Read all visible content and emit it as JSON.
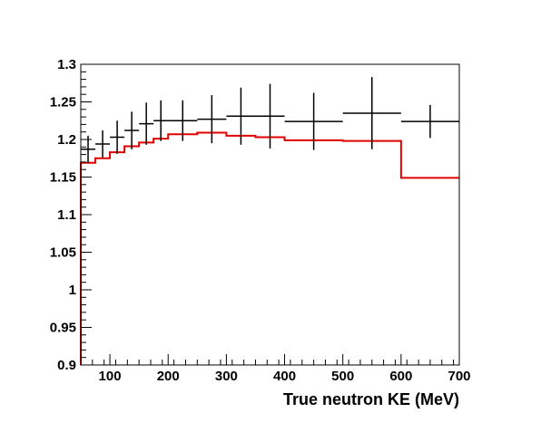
{
  "chart_data": {
    "type": "line",
    "title": "",
    "xlabel": "True neutron KE (MeV)",
    "ylabel": "",
    "xlim": [
      50,
      700
    ],
    "ylim": [
      0.9,
      1.3
    ],
    "x_ticks": [
      100,
      200,
      300,
      400,
      500,
      600,
      700
    ],
    "x_tick_labels": [
      "100",
      "200",
      "300",
      "400",
      "500",
      "600",
      "700"
    ],
    "y_ticks": [
      0.9,
      0.95,
      1.0,
      1.05,
      1.1,
      1.15,
      1.2,
      1.25,
      1.3
    ],
    "y_tick_labels": [
      "0.9",
      "0.95",
      "1",
      "1.05",
      "1.1",
      "1.15",
      "1.2",
      "1.25",
      "1.3"
    ],
    "grid": false,
    "colors": {
      "points": "#000000",
      "histogram": "#e00000"
    },
    "series": [
      {
        "style": "points-with-errors",
        "points": [
          {
            "x": 62.5,
            "xlow": 50,
            "xhigh": 75,
            "y": 1.187,
            "yerr": 0.018
          },
          {
            "x": 87.5,
            "xlow": 75,
            "xhigh": 100,
            "y": 1.194,
            "yerr": 0.018
          },
          {
            "x": 112.5,
            "xlow": 100,
            "xhigh": 125,
            "y": 1.203,
            "yerr": 0.022
          },
          {
            "x": 137.5,
            "xlow": 125,
            "xhigh": 150,
            "y": 1.212,
            "yerr": 0.025
          },
          {
            "x": 162.5,
            "xlow": 150,
            "xhigh": 175,
            "y": 1.221,
            "yerr": 0.028
          },
          {
            "x": 187.5,
            "xlow": 175,
            "xhigh": 200,
            "y": 1.225,
            "yerr": 0.027
          },
          {
            "x": 225,
            "xlow": 200,
            "xhigh": 250,
            "y": 1.225,
            "yerr": 0.027
          },
          {
            "x": 275,
            "xlow": 250,
            "xhigh": 300,
            "y": 1.227,
            "yerr": 0.032
          },
          {
            "x": 325,
            "xlow": 300,
            "xhigh": 350,
            "y": 1.231,
            "yerr": 0.038
          },
          {
            "x": 375,
            "xlow": 350,
            "xhigh": 400,
            "y": 1.231,
            "yerr": 0.043
          },
          {
            "x": 450,
            "xlow": 400,
            "xhigh": 500,
            "y": 1.224,
            "yerr": 0.038
          },
          {
            "x": 550,
            "xlow": 500,
            "xhigh": 600,
            "y": 1.235,
            "yerr": 0.048
          },
          {
            "x": 650,
            "xlow": 600,
            "xhigh": 700,
            "y": 1.224,
            "yerr": 0.022
          }
        ]
      },
      {
        "style": "step-histogram",
        "edges": [
          50,
          75,
          100,
          125,
          150,
          175,
          200,
          250,
          300,
          350,
          400,
          500,
          600,
          700
        ],
        "values": [
          1.169,
          1.175,
          1.183,
          1.191,
          1.196,
          1.201,
          1.207,
          1.209,
          1.205,
          1.203,
          1.199,
          1.198,
          1.149
        ]
      }
    ]
  }
}
